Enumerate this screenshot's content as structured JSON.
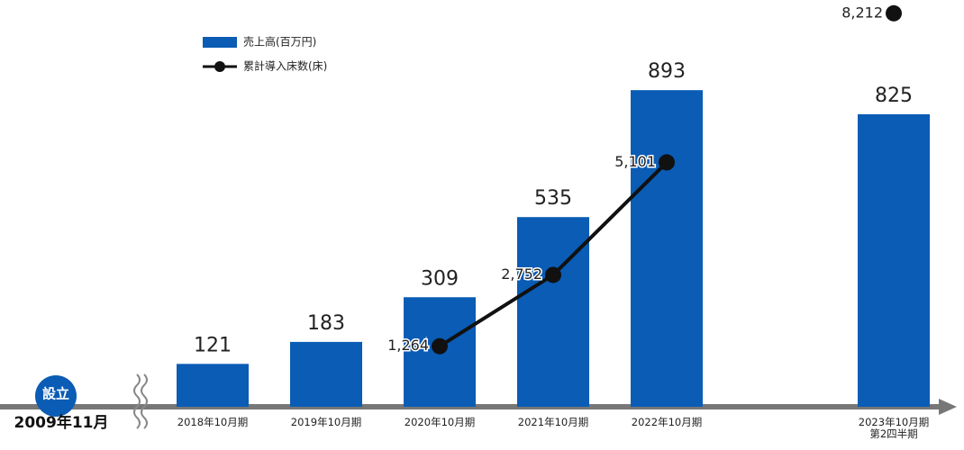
{
  "chart_data": {
    "type": "bar",
    "annotations": [
      "設立",
      "2009年11月"
    ],
    "categories": [
      "2018年10月期",
      "2019年10月期",
      "2020年10月期",
      "2021年10月期",
      "2022年10月期",
      null,
      "2023年10月期\n第2四半期"
    ],
    "series": [
      {
        "name": "売上高(百万円)",
        "type": "bar",
        "color": "#0a5cb5",
        "values": [
          121,
          183,
          309,
          535,
          893,
          null,
          825
        ]
      },
      {
        "name": "累計導入床数(床)",
        "type": "line",
        "axis": "y2",
        "color": "#111111",
        "values": [
          null,
          null,
          1264,
          2752,
          5101,
          null,
          8212
        ],
        "value_labels": [
          null,
          null,
          "1,264",
          "2,752",
          "5,101",
          null,
          "8,212"
        ]
      }
    ],
    "ylim": [
      0,
      1000
    ],
    "y2lim": [
      0,
      7400
    ]
  }
}
